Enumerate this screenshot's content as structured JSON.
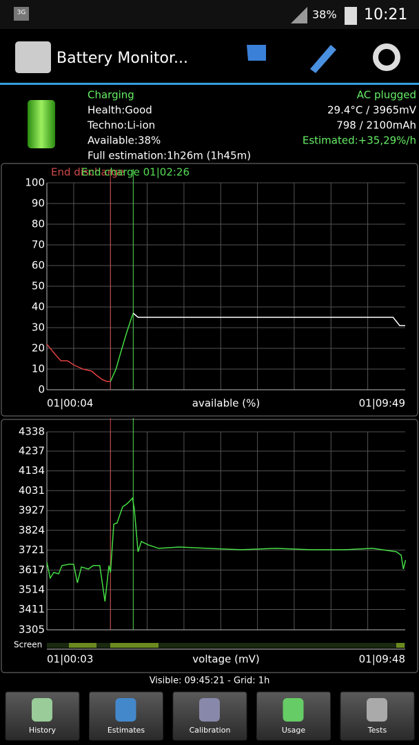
{
  "status_bar": {
    "network": "3G",
    "battery": "38%",
    "time": "10:21"
  },
  "header": {
    "title": "Battery Monitor..."
  },
  "info": {
    "left": [
      "Charging",
      "Health:Good",
      "Techno:Li-ion",
      "Available:38%",
      "Full estimation:1h26m (1h45m)"
    ],
    "right": [
      "AC plugged",
      "29.4°C / 3965mV",
      "798 / 2100mAh",
      "Estimated:+35,29%/h"
    ]
  },
  "charts": [
    {
      "type": "line",
      "x_start_label": "01|00:04",
      "x_label": "available (%)",
      "x_end_label": "01|09:49",
      "xlim": [
        0,
        9.75
      ],
      "xgrid": [
        0.73,
        1.73,
        2.73,
        3.73,
        4.73,
        5.73,
        6.73,
        7.73,
        8.73
      ],
      "ylim": [
        0,
        100
      ],
      "yticks": [
        0,
        10,
        20,
        30,
        40,
        50,
        60,
        70,
        80,
        90,
        100
      ],
      "markers": [
        {
          "label": "End discharge",
          "color": "#d04848",
          "x": 1.73
        },
        {
          "label": "End charge 01|02:26",
          "color": "#55dd55",
          "x": 2.35
        }
      ],
      "series": [
        {
          "color": "#e04040",
          "x": [
            0,
            0.23,
            0.38,
            0.56,
            0.73,
            0.98,
            1.22,
            1.35,
            1.5,
            1.63,
            1.73
          ],
          "values": [
            22,
            17,
            14,
            14,
            12,
            10,
            9,
            7,
            5,
            4,
            4
          ]
        },
        {
          "color": "#44dd44",
          "x": [
            1.73,
            1.88,
            2.01,
            2.16,
            2.29,
            2.35
          ],
          "values": [
            4,
            10,
            18,
            27,
            34,
            37
          ]
        },
        {
          "color": "#ffffff",
          "x": [
            2.35,
            2.48,
            9.42,
            9.6,
            9.75
          ],
          "values": [
            37,
            35,
            35,
            31,
            31
          ]
        }
      ]
    },
    {
      "type": "line",
      "x_start_label": "01|00:03",
      "x_label": "voltage (mV)",
      "x_end_label": "01|09:48",
      "screen_label": "Screen",
      "xlim": [
        0,
        9.75
      ],
      "xgrid": [
        0.73,
        1.73,
        2.73,
        3.73,
        4.73,
        5.73,
        6.73,
        7.73,
        8.73
      ],
      "ylim": [
        3305,
        4338
      ],
      "yticks": [
        3305,
        3411,
        3514,
        3617,
        3721,
        3824,
        3927,
        4031,
        4134,
        4237,
        4338
      ],
      "markers": [
        {
          "color": "#d04848",
          "x": 1.73
        },
        {
          "color": "#55dd55",
          "x": 2.35
        }
      ],
      "series": [
        {
          "color": "#44dd44",
          "x": [
            0,
            0.09,
            0.19,
            0.32,
            0.41,
            0.6,
            0.73,
            0.83,
            0.94,
            1.13,
            1.26,
            1.44,
            1.58,
            1.69,
            1.73,
            1.82,
            1.91,
            2.06,
            2.19,
            2.33,
            2.38,
            2.48,
            2.57,
            2.76,
            3.04,
            3.6,
            4.35,
            5.29,
            6.23,
            7.17,
            8.11,
            8.86,
            9.51,
            9.64,
            9.7,
            9.76
          ],
          "values": [
            3658,
            3575,
            3604,
            3597,
            3640,
            3647,
            3647,
            3550,
            3633,
            3622,
            3640,
            3640,
            3453,
            3640,
            3604,
            3856,
            3863,
            3946,
            3964,
            3992,
            3935,
            3712,
            3766,
            3748,
            3730,
            3737,
            3730,
            3723,
            3730,
            3723,
            3723,
            3730,
            3712,
            3694,
            3622,
            3669
          ]
        }
      ]
    }
  ],
  "footer": "Visible: 09:45:21 - Grid: 1h",
  "tabs": [
    "History",
    "Estimates",
    "Calibration",
    "Usage",
    "Tests"
  ]
}
